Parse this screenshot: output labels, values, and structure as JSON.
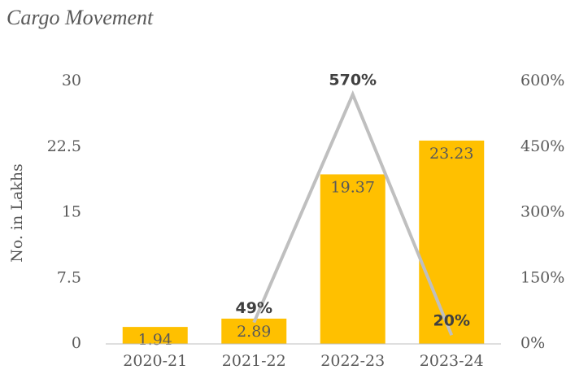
{
  "chart_data": {
    "type": "bar_line",
    "title": "Cargo Movement",
    "y_label": "No. in Lakhs",
    "categories": [
      "2020-21",
      "2021-22",
      "2022-23",
      "2023-24"
    ],
    "series": [
      {
        "name": "Cargo",
        "type": "bar",
        "color": "#ffc000",
        "values": [
          1.94,
          2.89,
          19.37,
          23.23
        ]
      },
      {
        "name": "Growth",
        "type": "line",
        "axis": "y2",
        "color": "#bfbfbf",
        "values": [
          null,
          49,
          570,
          20
        ],
        "value_labels": [
          null,
          "49%",
          "570%",
          "20%"
        ]
      }
    ],
    "ylim": [
      0,
      30
    ],
    "yticks": [
      0,
      7.5,
      15,
      22.5,
      30
    ],
    "y2lim": [
      0,
      600
    ],
    "y2ticks": [
      {
        "value": 0,
        "label": "0%"
      },
      {
        "value": 150,
        "label": "150%"
      },
      {
        "value": 300,
        "label": "300%"
      },
      {
        "value": 450,
        "label": "450%"
      },
      {
        "value": 600,
        "label": "600%"
      }
    ],
    "grid": false
  }
}
